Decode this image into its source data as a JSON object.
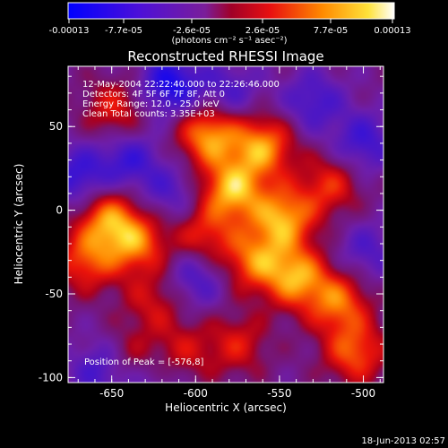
{
  "colorbar": {
    "tick_labels": [
      "-0.00013",
      "-7.7e-05",
      "-2.6e-05",
      "2.6e-05",
      "7.7e-05",
      "0.00013"
    ],
    "unit_label": "(photons cm⁻² s⁻¹ asec⁻²)"
  },
  "chart_data": {
    "type": "heatmap",
    "title": "Reconstructed RHESSI Image",
    "xlabel": "Heliocentric X (arcsec)",
    "ylabel": "Heliocentric Y (arcsec)",
    "xlim": [
      -676,
      -488
    ],
    "ylim": [
      -103,
      86
    ],
    "x_ticks": [
      -650,
      -600,
      -550,
      -500
    ],
    "y_ticks": [
      -100,
      -50,
      0,
      50
    ],
    "x_tick_labels": [
      "-650",
      "-600",
      "-550",
      "-500"
    ],
    "y_tick_labels": [
      "-100",
      "-50",
      "0",
      "50"
    ],
    "vmin": -0.00013,
    "vmax": 0.00013,
    "colormap": "rhessi (blue-purple-red-orange-yellow-white)",
    "annotations": [
      "12-May-2004 22:22:40.000 to 22:26:46.000",
      "Detectors: 4F 5F 6F 7F 8F, Att 0",
      "Energy Range: 12.0 - 25.0 keV",
      "Clean     Total counts: 3.35E+03"
    ],
    "peak_label": "Position of Peak = [-576,8]",
    "peak_position": [
      -576,
      8
    ],
    "sources": [
      {
        "x": -592,
        "y": 45,
        "amp": 1.0
      },
      {
        "x": -578,
        "y": 12,
        "amp": 1.05
      },
      {
        "x": -560,
        "y": 38,
        "amp": 0.95
      },
      {
        "x": -548,
        "y": -5,
        "amp": 1.0
      },
      {
        "x": -540,
        "y": -40,
        "amp": 0.95
      },
      {
        "x": -565,
        "y": -30,
        "amp": 0.8
      },
      {
        "x": -595,
        "y": -15,
        "amp": 0.6
      },
      {
        "x": -515,
        "y": -55,
        "amp": 0.8
      },
      {
        "x": -505,
        "y": -85,
        "amp": 0.75
      },
      {
        "x": -520,
        "y": 15,
        "amp": 0.6
      },
      {
        "x": -652,
        "y": -5,
        "amp": 0.85
      },
      {
        "x": -635,
        "y": -20,
        "amp": 0.8
      },
      {
        "x": -665,
        "y": -30,
        "amp": 0.7
      },
      {
        "x": -625,
        "y": -55,
        "amp": 0.45
      },
      {
        "x": -648,
        "y": 60,
        "amp": 0.55
      },
      {
        "x": -640,
        "y": -90,
        "amp": 0.5
      },
      {
        "x": -608,
        "y": -85,
        "amp": 0.45
      },
      {
        "x": -575,
        "y": -80,
        "amp": 0.5
      },
      {
        "x": -615,
        "y": 75,
        "amp": -0.8
      },
      {
        "x": -670,
        "y": 20,
        "amp": -0.6
      },
      {
        "x": -640,
        "y": 30,
        "amp": -0.55
      },
      {
        "x": -580,
        "y": 70,
        "amp": -0.45
      },
      {
        "x": -530,
        "y": 65,
        "amp": -0.5
      },
      {
        "x": -500,
        "y": 40,
        "amp": -0.55
      },
      {
        "x": -655,
        "y": -95,
        "amp": -0.6
      },
      {
        "x": -600,
        "y": -40,
        "amp": -0.5
      },
      {
        "x": -615,
        "y": 10,
        "amp": -0.4
      },
      {
        "x": -498,
        "y": -25,
        "amp": -0.4
      },
      {
        "x": -625,
        "y": -100,
        "amp": -0.35
      }
    ]
  },
  "footer": {
    "timestamp": "18-Jun-2013 02:57"
  }
}
